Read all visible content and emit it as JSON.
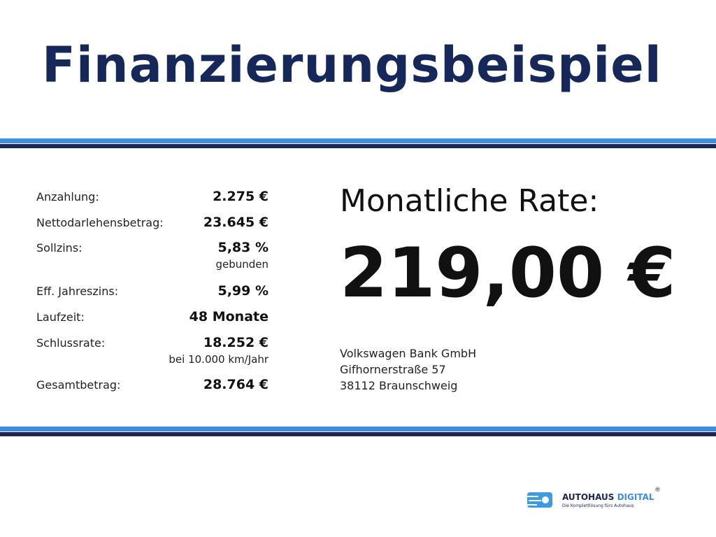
{
  "header": {
    "title": "Finanzierungsbeispiel"
  },
  "table": {
    "rows": [
      {
        "label": "Anzahlung:",
        "value": "2.275 €"
      },
      {
        "label": "Nettodarlehensbetrag:",
        "value": "23.645 €"
      },
      {
        "label": "Sollzins:",
        "value": "5,83 %",
        "note": "gebunden"
      },
      {
        "label": "Eff. Jahreszins:",
        "value": "5,99 %"
      },
      {
        "label": "Laufzeit:",
        "value": "48 Monate"
      },
      {
        "label": "Schlussrate:",
        "value": "18.252 €",
        "note": "bei 10.000 km/Jahr"
      },
      {
        "label": "Gesamtbetrag:",
        "value": "28.764 €"
      }
    ]
  },
  "rate": {
    "label": "Monatliche Rate:",
    "value": "219,00 €"
  },
  "bank": {
    "lines": [
      "Volkswagen Bank GmbH",
      "Gifhornerstraße 57",
      "38112 Braunschweig"
    ]
  },
  "logo": {
    "name_part1": "AUTOHAUS",
    "name_part2": "DIGITAL",
    "mark": "®",
    "tagline": "Die Komplettlösung fürs Autohaus"
  }
}
